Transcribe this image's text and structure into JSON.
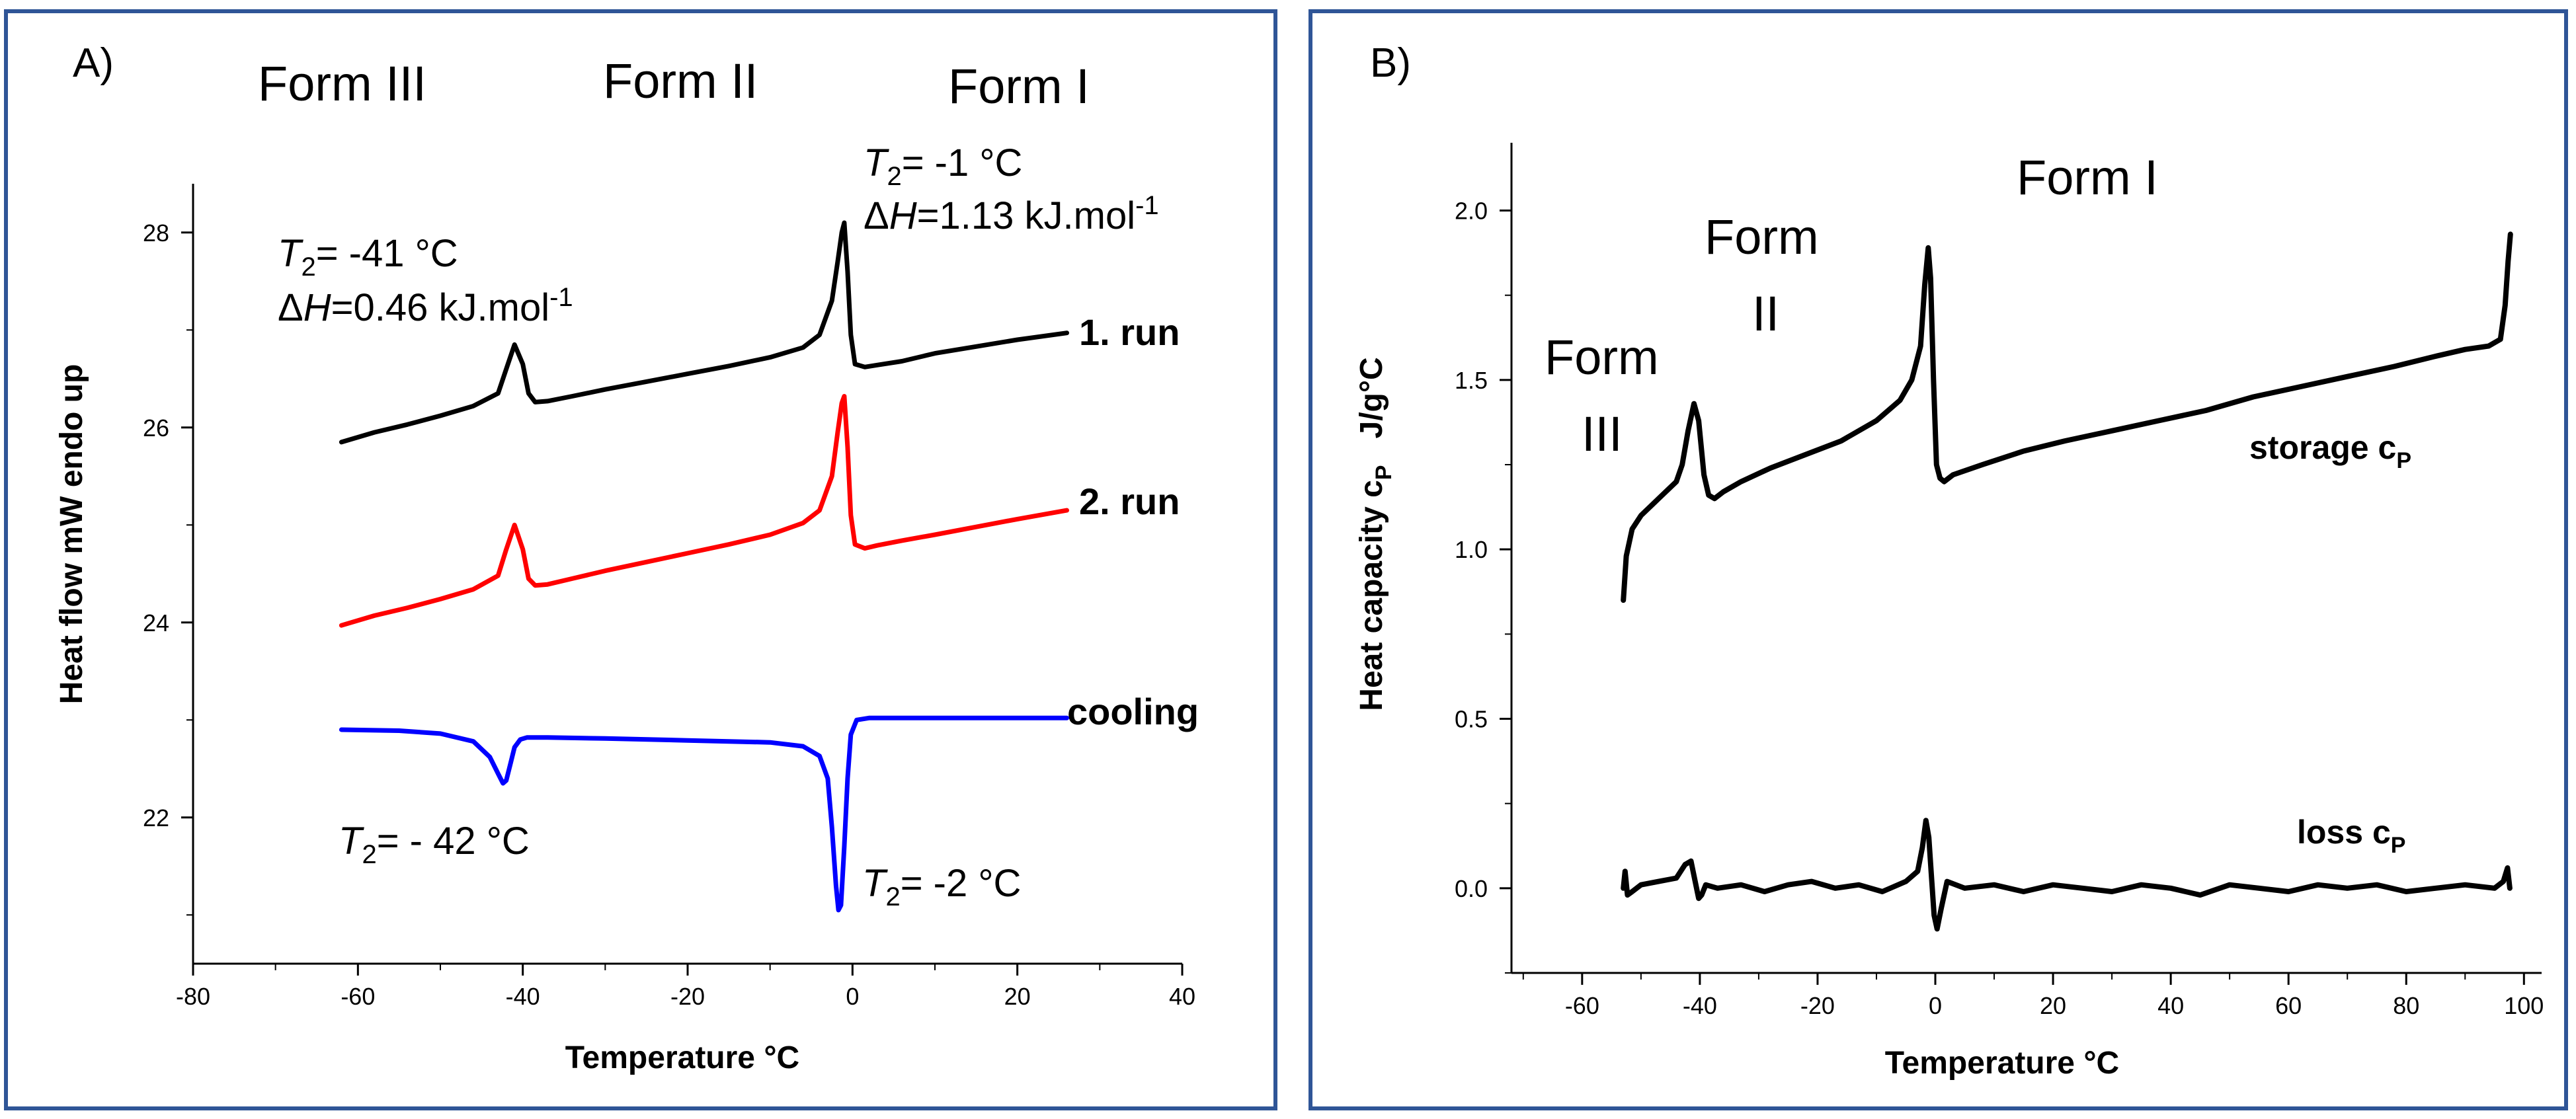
{
  "colors": {
    "border": "#2f5597",
    "run1": "#000000",
    "run2": "#ff0000",
    "cooling": "#0000ff",
    "storage": "#000000",
    "loss": "#000000"
  },
  "chart_data": [
    {
      "panel": "A)",
      "type": "line",
      "title": "",
      "xlabel": "Temperature   °C",
      "ylabel": "Heat flow   mW endo up",
      "xlim": [
        -80,
        40
      ],
      "ylim": [
        20.5,
        28.5
      ],
      "xticks": [
        "-80",
        "-60",
        "-40",
        "-20",
        "0",
        "20",
        "40"
      ],
      "yticks": [
        "22",
        "24",
        "26",
        "28"
      ],
      "form_labels": [
        "Form III",
        "Form II",
        "Form I"
      ],
      "annotations": {
        "peak1_T": "T",
        "peak1_T_sub": "2",
        "peak1_T_val": "= -41 °C",
        "peak1_dH_delta": "Δ",
        "peak1_dH_H": "H",
        "peak1_dH_val": "=0.46 kJ.mol",
        "peak1_dH_exp": "-1",
        "peak2_T": "T",
        "peak2_T_sub": "2",
        "peak2_T_val": "= -1 °C",
        "peak2_dH_delta": "Δ",
        "peak2_dH_H": "H",
        "peak2_dH_val": "=1.13 kJ.mol",
        "peak2_dH_exp": "-1",
        "cool1_T": "T",
        "cool1_T_sub": "2",
        "cool1_T_val": "= - 42 °C",
        "cool2_T": "T",
        "cool2_T_sub": "2",
        "cool2_T_val": "= -2 °C"
      },
      "series": [
        {
          "name": "1. run",
          "color": "#000000",
          "x": [
            -62,
            -58,
            -54,
            -50,
            -46,
            -43,
            -42,
            -41,
            -40,
            -39.3,
            -38.5,
            -37,
            -34,
            -30,
            -25,
            -20,
            -15,
            -10,
            -6,
            -4,
            -2.5,
            -1.8,
            -1.3,
            -1,
            -0.6,
            -0.2,
            0.3,
            1.5,
            3,
            6,
            10,
            15,
            20,
            26
          ],
          "values": [
            25.85,
            25.95,
            26.03,
            26.12,
            26.22,
            26.35,
            26.6,
            26.85,
            26.65,
            26.35,
            26.26,
            26.27,
            26.32,
            26.39,
            26.47,
            26.55,
            26.63,
            26.72,
            26.82,
            26.95,
            27.3,
            27.7,
            28.0,
            28.1,
            27.6,
            26.95,
            26.65,
            26.62,
            26.64,
            26.68,
            26.76,
            26.83,
            26.9,
            26.97
          ]
        },
        {
          "name": "2. run",
          "color": "#ff0000",
          "x": [
            -62,
            -58,
            -54,
            -50,
            -46,
            -43,
            -42,
            -41,
            -40,
            -39.3,
            -38.5,
            -37,
            -34,
            -30,
            -25,
            -20,
            -15,
            -10,
            -6,
            -4,
            -2.5,
            -1.8,
            -1.3,
            -1,
            -0.6,
            -0.2,
            0.3,
            1.5,
            3,
            6,
            10,
            15,
            20,
            26
          ],
          "values": [
            23.97,
            24.07,
            24.15,
            24.24,
            24.34,
            24.48,
            24.75,
            25.0,
            24.75,
            24.45,
            24.38,
            24.39,
            24.45,
            24.53,
            24.62,
            24.71,
            24.8,
            24.9,
            25.02,
            25.15,
            25.5,
            25.95,
            26.25,
            26.32,
            25.8,
            25.1,
            24.8,
            24.76,
            24.79,
            24.84,
            24.9,
            24.98,
            25.06,
            25.15
          ]
        },
        {
          "name": "cooling",
          "color": "#0000ff",
          "x": [
            -62,
            -55,
            -50,
            -46,
            -44,
            -43,
            -42.4,
            -42,
            -41.5,
            -41,
            -40.3,
            -39.5,
            -37,
            -30,
            -20,
            -10,
            -6,
            -4,
            -3,
            -2.5,
            -2,
            -1.7,
            -1.4,
            -1,
            -0.6,
            -0.2,
            0.5,
            2,
            10,
            20,
            26
          ],
          "values": [
            22.9,
            22.89,
            22.86,
            22.78,
            22.62,
            22.45,
            22.35,
            22.38,
            22.55,
            22.72,
            22.8,
            22.82,
            22.82,
            22.81,
            22.79,
            22.77,
            22.73,
            22.63,
            22.4,
            21.9,
            21.3,
            21.05,
            21.1,
            21.7,
            22.4,
            22.85,
            23.0,
            23.02,
            23.02,
            23.02,
            23.02
          ]
        }
      ]
    },
    {
      "panel": "B)",
      "type": "line",
      "title": "",
      "xlabel": "Temperature    °C",
      "ylabel": "Heat capacity c",
      "ylabel_sub": "P",
      "ylabel_unit": "J/g°C",
      "xlim": [
        -72,
        103
      ],
      "ylim": [
        -0.25,
        2.2
      ],
      "xticks": [
        "-60",
        "-40",
        "-20",
        "0",
        "20",
        "40",
        "60",
        "80",
        "100"
      ],
      "yticks": [
        "0.0",
        "0.5",
        "1.0",
        "1.5",
        "2.0"
      ],
      "form_labels": {
        "form3_line1": "Form",
        "form3_line2": "III",
        "form2_line1": "Form",
        "form2_line2": "II",
        "form1": "Form I"
      },
      "series": [
        {
          "name": "storage c",
          "name_sub": "P",
          "color": "#000000",
          "x": [
            -53,
            -52.5,
            -51.5,
            -50,
            -47,
            -44,
            -43,
            -42,
            -41,
            -40.2,
            -39.3,
            -38.5,
            -37.5,
            -36,
            -33,
            -28,
            -22,
            -16,
            -10,
            -6,
            -4,
            -2.5,
            -1.8,
            -1.2,
            -0.8,
            -0.3,
            0.2,
            0.8,
            1.5,
            3,
            8,
            15,
            22,
            30,
            38,
            46,
            54,
            62,
            70,
            78,
            85,
            90,
            94,
            96,
            96.8,
            97.3,
            97.7
          ],
          "values": [
            0.85,
            0.98,
            1.06,
            1.1,
            1.15,
            1.2,
            1.25,
            1.35,
            1.43,
            1.38,
            1.22,
            1.16,
            1.15,
            1.17,
            1.2,
            1.24,
            1.28,
            1.32,
            1.38,
            1.44,
            1.5,
            1.6,
            1.78,
            1.89,
            1.8,
            1.5,
            1.25,
            1.21,
            1.2,
            1.22,
            1.25,
            1.29,
            1.32,
            1.35,
            1.38,
            1.41,
            1.45,
            1.48,
            1.51,
            1.54,
            1.57,
            1.59,
            1.6,
            1.62,
            1.72,
            1.85,
            1.93
          ]
        },
        {
          "name": "loss c",
          "name_sub": "P",
          "color": "#000000",
          "x": [
            -53,
            -52.7,
            -52.3,
            -51.5,
            -50,
            -47,
            -44,
            -42.5,
            -41.5,
            -40.8,
            -40.2,
            -39.7,
            -39,
            -37,
            -33,
            -29,
            -25,
            -21,
            -17,
            -13,
            -9,
            -5,
            -3,
            -2.2,
            -1.6,
            -1.1,
            -0.6,
            -0.2,
            0.3,
            1,
            2,
            5,
            10,
            15,
            20,
            25,
            30,
            35,
            40,
            45,
            50,
            55,
            60,
            65,
            70,
            75,
            80,
            85,
            90,
            95,
            96.5,
            97.2,
            97.6
          ],
          "values": [
            0.0,
            0.05,
            -0.02,
            -0.01,
            0.01,
            0.02,
            0.03,
            0.07,
            0.08,
            0.02,
            -0.03,
            -0.02,
            0.01,
            0.0,
            0.01,
            -0.01,
            0.01,
            0.02,
            0.0,
            0.01,
            -0.01,
            0.02,
            0.05,
            0.12,
            0.2,
            0.15,
            0.02,
            -0.08,
            -0.12,
            -0.06,
            0.02,
            0.0,
            0.01,
            -0.01,
            0.01,
            0.0,
            -0.01,
            0.01,
            0.0,
            -0.02,
            0.01,
            0.0,
            -0.01,
            0.01,
            0.0,
            0.01,
            -0.01,
            0.0,
            0.01,
            0.0,
            0.02,
            0.06,
            0.0
          ]
        }
      ]
    }
  ]
}
